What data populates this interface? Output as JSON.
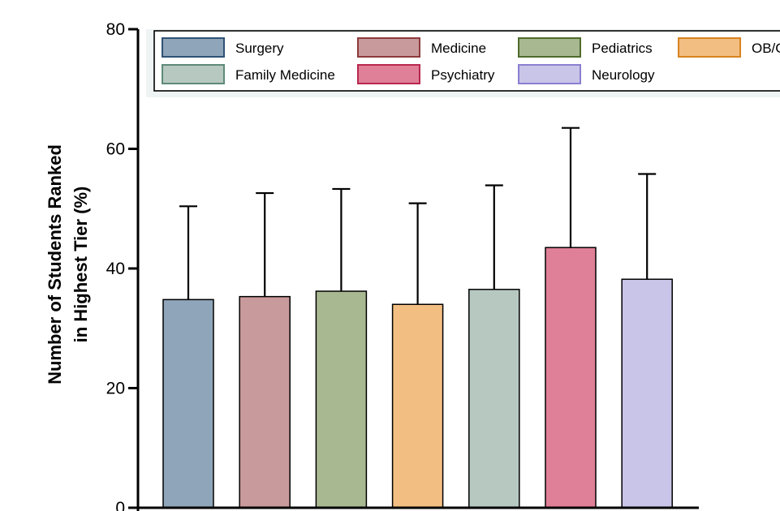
{
  "chart_data": {
    "type": "bar",
    "ylabel_lines": [
      "Number of Students Ranked",
      "in Highest Tier (%)"
    ],
    "xlabel": "",
    "ylim": [
      0,
      80
    ],
    "y_ticks": [
      "0",
      "20",
      "40",
      "60",
      "80"
    ],
    "grid": false,
    "error_bars": "upper",
    "series": [
      {
        "name": "Surgery",
        "value": 34.8,
        "error_top": 50.4,
        "fill": "#8fa5b9",
        "stroke": "#2f5273"
      },
      {
        "name": "Medicine",
        "value": 35.3,
        "error_top": 52.6,
        "fill": "#c99a9b",
        "stroke": "#8c3a3d"
      },
      {
        "name": "Pediatrics",
        "value": 36.2,
        "error_top": 53.3,
        "fill": "#a8b891",
        "stroke": "#4e6b2c"
      },
      {
        "name": "OB/GYN",
        "value": 34.0,
        "error_top": 50.9,
        "fill": "#f2be82",
        "stroke": "#d9831f"
      },
      {
        "name": "Family Medicine",
        "value": 36.5,
        "error_top": 53.9,
        "fill": "#b7c8c1",
        "stroke": "#5e8a77"
      },
      {
        "name": "Psychiatry",
        "value": 43.5,
        "error_top": 63.5,
        "fill": "#e07f98",
        "stroke": "#b8284d"
      },
      {
        "name": "Neurology",
        "value": 38.2,
        "error_top": 55.8,
        "fill": "#c9c5e8",
        "stroke": "#8a7fd0"
      }
    ],
    "legend": {
      "placement": "top",
      "visible_labels": [
        "Surgery",
        "Medicine",
        "Pediatrics",
        "OB/G",
        "Family Medicine",
        "Psychiatry",
        "Neurology"
      ]
    }
  }
}
